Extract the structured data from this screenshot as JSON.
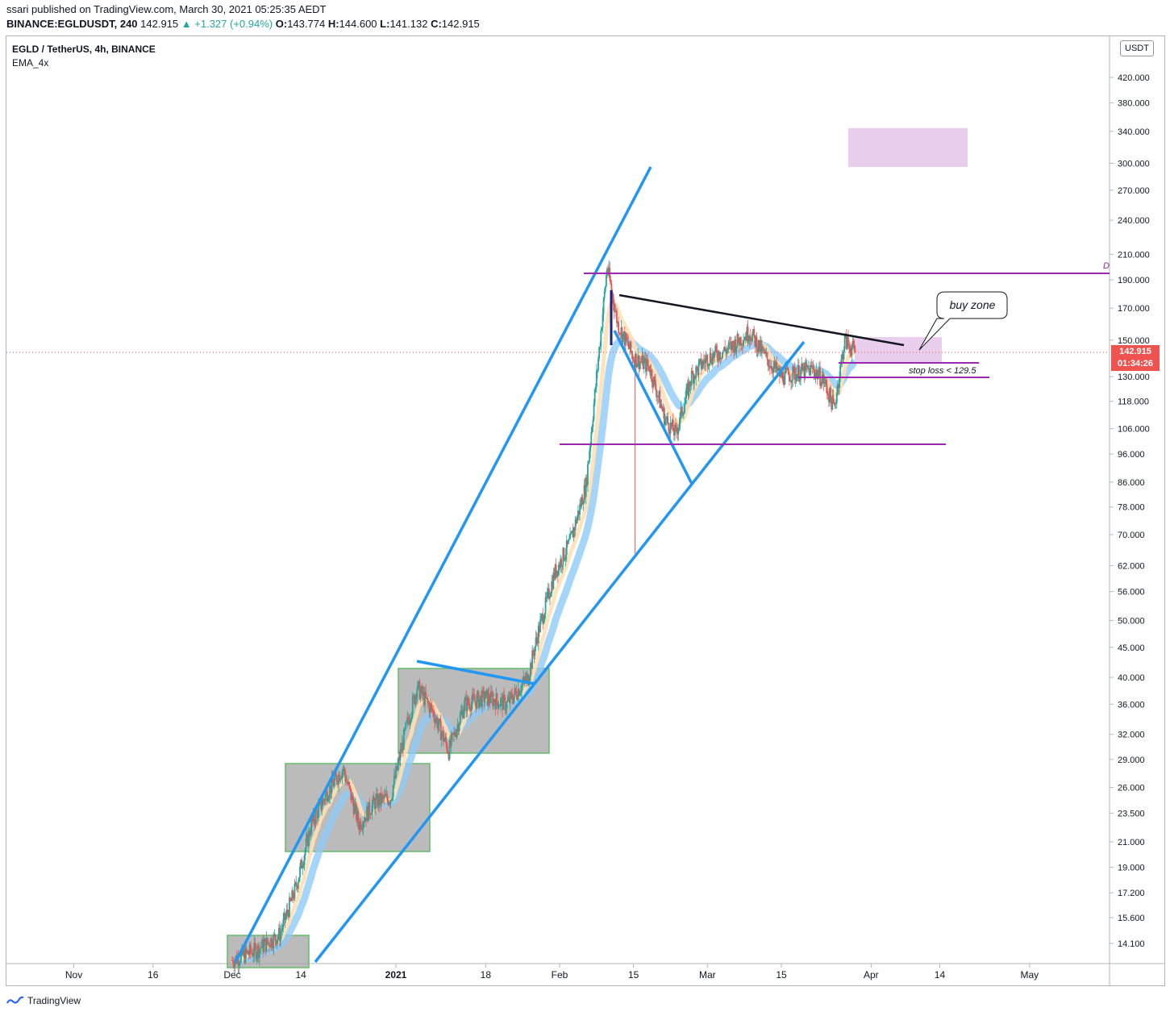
{
  "header": {
    "published": "ssari published on TradingView.com, March 30, 2021 05:25:35 AEDT",
    "symbol": "BINANCE:EGLDUSDT, 240",
    "last": "142.915",
    "change": "▲ +1.327 (+0.94%)",
    "o_label": "O:",
    "o_value": "143.774",
    "h_label": "H:",
    "h_value": "144.600",
    "l_label": "L:",
    "l_value": "141.132",
    "c_label": "C:",
    "c_value": "142.915"
  },
  "legend": {
    "title": "EGLD / TetherUS, 4h, BINANCE",
    "indicator": "EMA_4x"
  },
  "currency_badge": "USDT",
  "price_tag": {
    "price": "142.915",
    "countdown": "01:34:26"
  },
  "annotations": {
    "callout": "buy zone",
    "stop_loss": "stop loss < 129.5",
    "edge_letter": "D"
  },
  "footer": {
    "brand": "TradingView"
  },
  "colors": {
    "trendline_blue": "#2196f3",
    "level_purple": "#9c27b0",
    "zone_pink": "#e1bee7",
    "box_gray": "#9e9e9e",
    "box_border_green": "#66bb6a",
    "candle_up": "#26a69a",
    "candle_down": "#ef5350",
    "ema_blue": "#90caf9",
    "ema_orange": "#ffe0b2",
    "price_red": "#ef5350"
  },
  "chart_data": {
    "type": "candlestick",
    "scale": "log",
    "y_ticks": [
      "420.000",
      "380.000",
      "340.000",
      "300.000",
      "270.000",
      "240.000",
      "210.000",
      "190.000",
      "170.000",
      "150.000",
      "130.000",
      "118.000",
      "106.000",
      "96.000",
      "86.000",
      "78.000",
      "70.000",
      "62.000",
      "56.000",
      "50.000",
      "45.000",
      "40.000",
      "36.000",
      "32.000",
      "29.000",
      "26.000",
      "23.500",
      "21.000",
      "19.000",
      "17.200",
      "15.600",
      "14.100"
    ],
    "x_ticks": [
      "Nov",
      "16",
      "Dec",
      "14",
      "2021",
      "18",
      "Feb",
      "15",
      "Mar",
      "15",
      "Apr",
      "14",
      "May"
    ],
    "price_path": [
      [
        "2020-12-01",
        13.2
      ],
      [
        "2020-12-06",
        13.8
      ],
      [
        "2020-12-10",
        14.6
      ],
      [
        "2020-12-13",
        17.5
      ],
      [
        "2020-12-16",
        22.5
      ],
      [
        "2020-12-19",
        25.5
      ],
      [
        "2020-12-22",
        28.0
      ],
      [
        "2020-12-25",
        22.5
      ],
      [
        "2020-12-28",
        24.5
      ],
      [
        "2020-12-31",
        25.0
      ],
      [
        "2021-01-03",
        33.0
      ],
      [
        "2021-01-05",
        38.5
      ],
      [
        "2021-01-08",
        35.0
      ],
      [
        "2021-01-11",
        30.0
      ],
      [
        "2021-01-14",
        36.0
      ],
      [
        "2021-01-18",
        37.0
      ],
      [
        "2021-01-22",
        36.0
      ],
      [
        "2021-01-26",
        40.0
      ],
      [
        "2021-01-28",
        48.0
      ],
      [
        "2021-01-31",
        60.0
      ],
      [
        "2021-02-03",
        68.0
      ],
      [
        "2021-02-06",
        85.0
      ],
      [
        "2021-02-08",
        130.0
      ],
      [
        "2021-02-10",
        200.0
      ],
      [
        "2021-02-12",
        160.0
      ],
      [
        "2021-02-15",
        140.0
      ],
      [
        "2021-02-18",
        135.0
      ],
      [
        "2021-02-21",
        110.0
      ],
      [
        "2021-02-23",
        104.0
      ],
      [
        "2021-02-26",
        130.0
      ],
      [
        "2021-03-01",
        140.0
      ],
      [
        "2021-03-05",
        145.0
      ],
      [
        "2021-03-09",
        155.0
      ],
      [
        "2021-03-12",
        140.0
      ],
      [
        "2021-03-15",
        130.0
      ],
      [
        "2021-03-18",
        132.0
      ],
      [
        "2021-03-21",
        134.0
      ],
      [
        "2021-03-23",
        128.0
      ],
      [
        "2021-03-25",
        115.0
      ],
      [
        "2021-03-27",
        150.0
      ],
      [
        "2021-03-29",
        142.9
      ]
    ],
    "levels": [
      195,
      99,
      135,
      129.5
    ],
    "last_price": 142.915
  }
}
